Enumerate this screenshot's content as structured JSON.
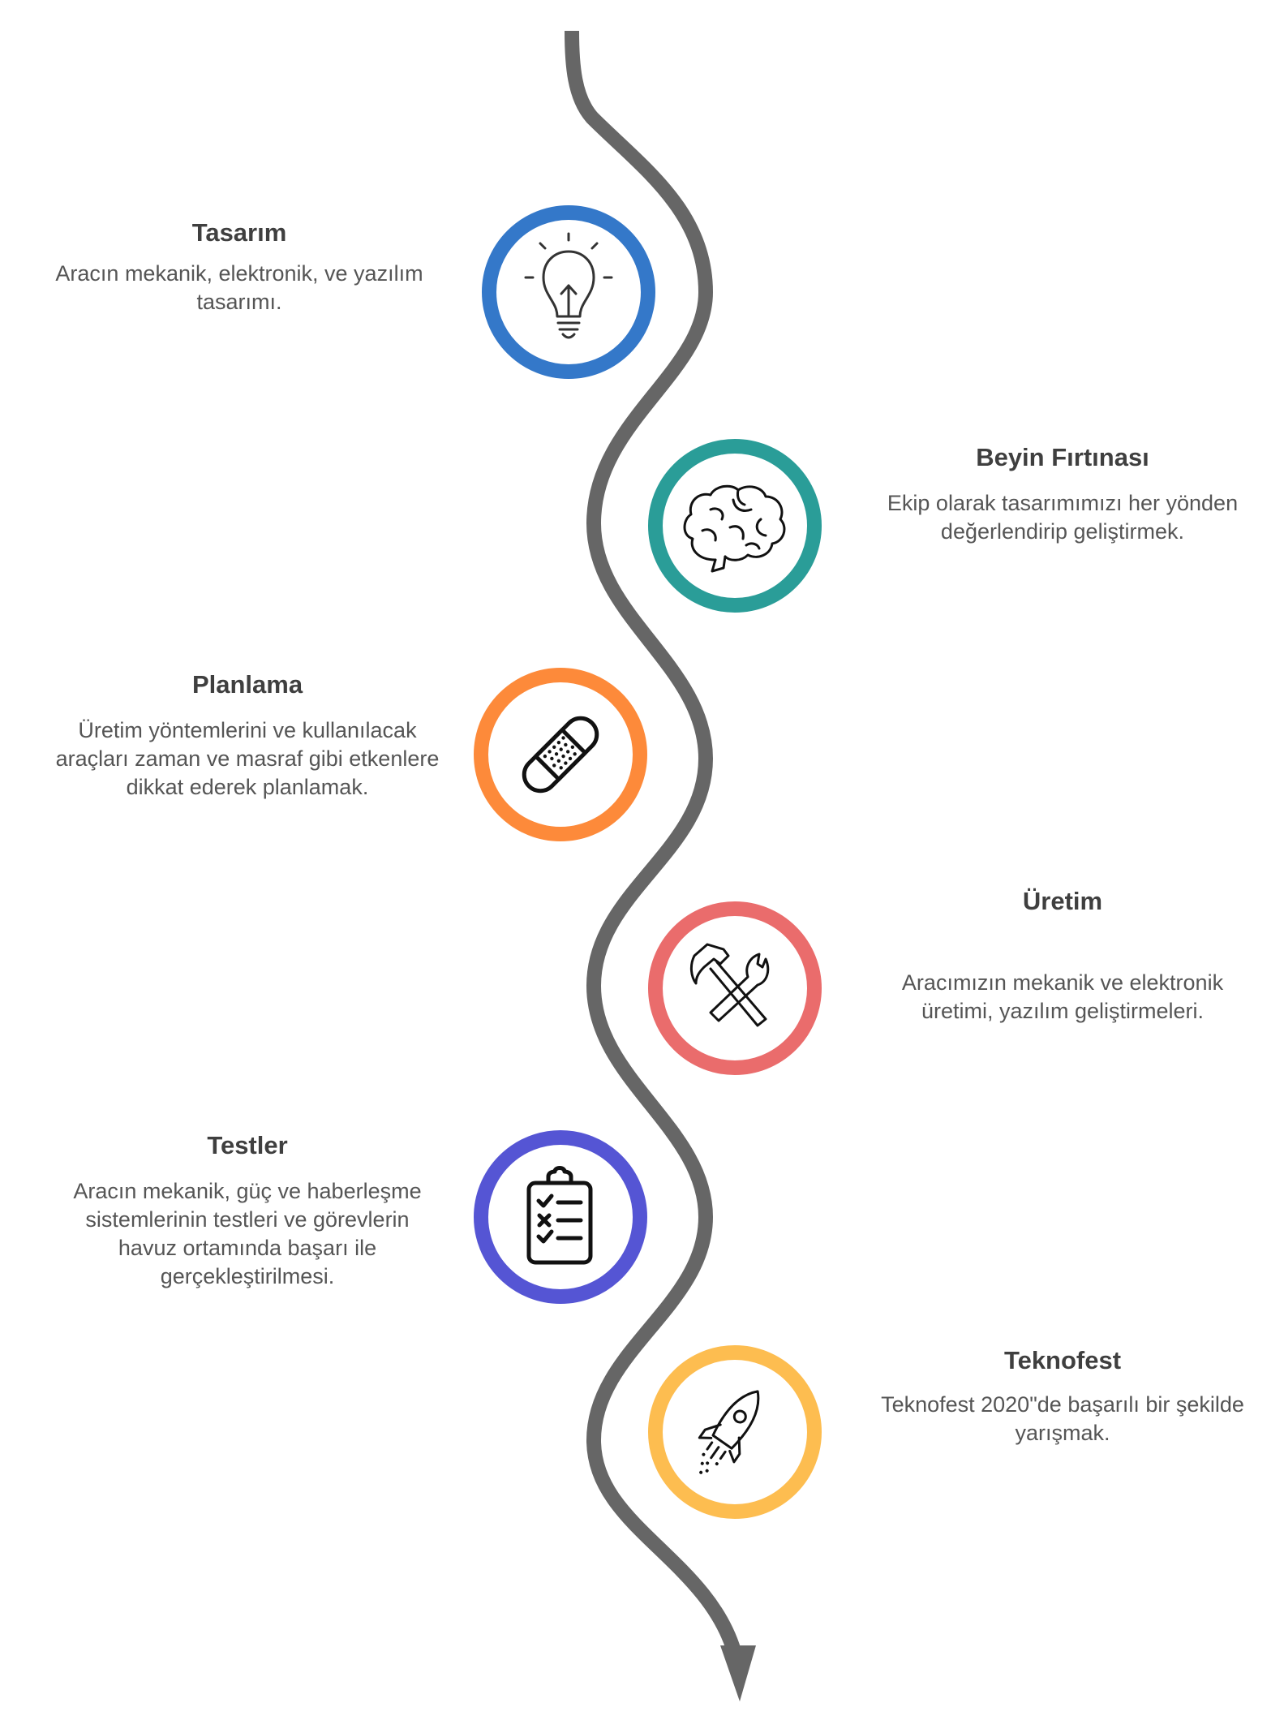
{
  "colors": {
    "path": "#666666",
    "background": "#ffffff",
    "icon_stroke": "#111111",
    "title_text": "#3f3f3f",
    "body_text": "#555555"
  },
  "steps": [
    {
      "id": "tasarim",
      "title": "Tasarım",
      "description": "Aracın mekanik, elektronik, ve yazılım tasarımı.",
      "icon": "lightbulb-icon",
      "color": "#3478c9"
    },
    {
      "id": "beyin-firtinasi",
      "title": "Beyin Fırtınası",
      "description": "Ekip olarak tasarımımızı her yönden değerlendirip geliştirmek.",
      "icon": "brain-icon",
      "color": "#2a9d98"
    },
    {
      "id": "planlama",
      "title": "Planlama",
      "description": "Üretim yöntemlerini ve kullanılacak araçları zaman ve masraf gibi etkenlere dikkat ederek planlamak.",
      "icon": "bandage-icon",
      "color": "#fd8a3a"
    },
    {
      "id": "uretim",
      "title": "Üretim",
      "description": "Aracımızın mekanik ve elektronik üretimi, yazılım geliştirmeleri.",
      "icon": "hammer-wrench-icon",
      "color": "#ea6c6c"
    },
    {
      "id": "testler",
      "title": "Testler",
      "description": "Aracın mekanik, güç ve haberleşme sistemlerinin testleri ve görevlerin havuz ortamında başarı ile gerçekleştirilmesi.",
      "icon": "clipboard-checklist-icon",
      "color": "#5555d4"
    },
    {
      "id": "teknofest",
      "title": "Teknofest",
      "description": "Teknofest 2020\"de başarılı bir şekilde yarışmak.",
      "icon": "rocket-icon",
      "color": "#fdbd50"
    }
  ]
}
